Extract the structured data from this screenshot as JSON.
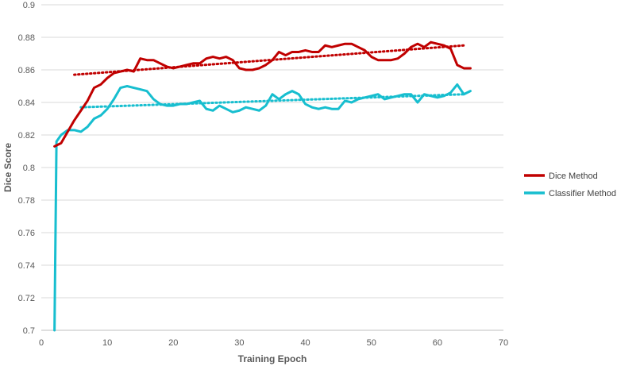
{
  "chart_data": {
    "type": "line",
    "title": "",
    "xlabel": "Training Epoch",
    "ylabel": "Dice Score",
    "xlim": [
      0,
      70
    ],
    "ylim": [
      0.7,
      0.9
    ],
    "x_ticks": [
      0,
      10,
      20,
      30,
      40,
      50,
      60,
      70
    ],
    "x_tick_labels": [
      "0",
      "10",
      "20",
      "30",
      "40",
      "50",
      "60",
      "70"
    ],
    "y_ticks": [
      0.7,
      0.72,
      0.74,
      0.76,
      0.78,
      0.8,
      0.82,
      0.84,
      0.86,
      0.88,
      0.9
    ],
    "y_tick_labels": [
      "0.7",
      "0.72",
      "0.74",
      "0.76",
      "0.78",
      "0.8",
      "0.82",
      "0.84",
      "0.86",
      "0.88",
      "0.9"
    ],
    "grid": "horizontal",
    "legend_position": "right",
    "series": [
      {
        "name": "Dice Method",
        "color": "#c00000",
        "x": [
          2,
          3,
          4,
          5,
          6,
          7,
          8,
          9,
          10,
          11,
          12,
          13,
          14,
          15,
          16,
          17,
          18,
          19,
          20,
          21,
          22,
          23,
          24,
          25,
          26,
          27,
          28,
          29,
          30,
          31,
          32,
          33,
          34,
          35,
          36,
          37,
          38,
          39,
          40,
          41,
          42,
          43,
          44,
          45,
          46,
          47,
          48,
          49,
          50,
          51,
          52,
          53,
          54,
          55,
          56,
          57,
          58,
          59,
          60,
          61,
          62,
          63,
          64,
          65
        ],
        "y": [
          0.813,
          0.815,
          0.822,
          0.829,
          0.835,
          0.841,
          0.849,
          0.851,
          0.855,
          0.858,
          0.859,
          0.86,
          0.859,
          0.867,
          0.866,
          0.866,
          0.864,
          0.862,
          0.861,
          0.862,
          0.863,
          0.864,
          0.864,
          0.867,
          0.868,
          0.867,
          0.868,
          0.866,
          0.861,
          0.86,
          0.86,
          0.861,
          0.863,
          0.866,
          0.871,
          0.869,
          0.871,
          0.871,
          0.872,
          0.871,
          0.871,
          0.875,
          0.874,
          0.875,
          0.876,
          0.876,
          0.874,
          0.872,
          0.868,
          0.866,
          0.866,
          0.866,
          0.867,
          0.87,
          0.874,
          0.876,
          0.874,
          0.877,
          0.876,
          0.875,
          0.873,
          0.863,
          0.861,
          0.861
        ]
      },
      {
        "name": "Classifier Method",
        "color": "#17becf",
        "x": [
          2,
          2.3,
          3,
          4,
          5,
          6,
          7,
          8,
          9,
          10,
          11,
          12,
          13,
          14,
          15,
          16,
          17,
          18,
          19,
          20,
          21,
          22,
          23,
          24,
          25,
          26,
          27,
          28,
          29,
          30,
          31,
          32,
          33,
          34,
          35,
          36,
          37,
          38,
          39,
          40,
          41,
          42,
          43,
          44,
          45,
          46,
          47,
          48,
          49,
          50,
          51,
          52,
          53,
          54,
          55,
          56,
          57,
          58,
          59,
          60,
          61,
          62,
          63,
          64,
          65
        ],
        "y": [
          0.7,
          0.816,
          0.82,
          0.823,
          0.823,
          0.822,
          0.825,
          0.83,
          0.832,
          0.836,
          0.842,
          0.849,
          0.85,
          0.849,
          0.848,
          0.847,
          0.842,
          0.839,
          0.838,
          0.838,
          0.839,
          0.839,
          0.84,
          0.841,
          0.836,
          0.835,
          0.838,
          0.836,
          0.834,
          0.835,
          0.837,
          0.836,
          0.835,
          0.838,
          0.845,
          0.842,
          0.845,
          0.847,
          0.845,
          0.839,
          0.837,
          0.836,
          0.837,
          0.836,
          0.836,
          0.841,
          0.84,
          0.842,
          0.843,
          0.844,
          0.845,
          0.842,
          0.843,
          0.844,
          0.845,
          0.845,
          0.84,
          0.845,
          0.844,
          0.843,
          0.844,
          0.846,
          0.851,
          0.845,
          0.847
        ]
      }
    ],
    "trendlines": [
      {
        "series": "Dice Method",
        "color": "#c00000",
        "x": [
          5,
          64
        ],
        "y": [
          0.857,
          0.875
        ]
      },
      {
        "series": "Classifier Method",
        "color": "#17becf",
        "x": [
          6,
          64
        ],
        "y": [
          0.837,
          0.845
        ]
      }
    ]
  }
}
